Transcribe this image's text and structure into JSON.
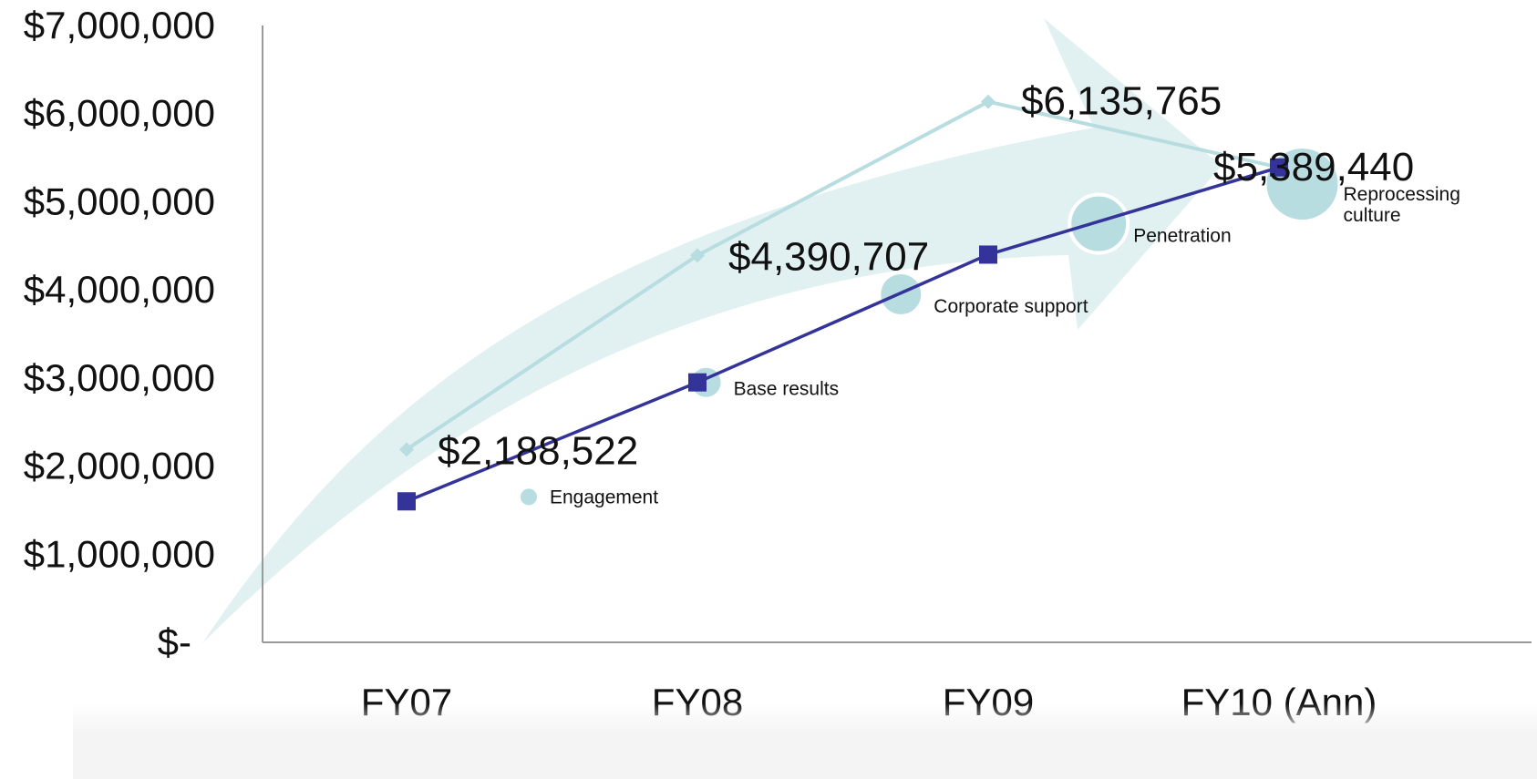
{
  "chart_data": {
    "type": "line",
    "categories": [
      "FY07",
      "FY08",
      "FY09",
      "FY10 (Ann)"
    ],
    "ylim": [
      0,
      7000000
    ],
    "y_ticks": [
      {
        "value": 0,
        "label": "$-"
      },
      {
        "value": 1000000,
        "label": "$1,000,000"
      },
      {
        "value": 2000000,
        "label": "$2,000,000"
      },
      {
        "value": 3000000,
        "label": "$3,000,000"
      },
      {
        "value": 4000000,
        "label": "$4,000,000"
      },
      {
        "value": 5000000,
        "label": "$5,000,000"
      },
      {
        "value": 6000000,
        "label": "$6,000,000"
      },
      {
        "value": 7000000,
        "label": "$7,000,000"
      }
    ],
    "series": [
      {
        "values": [
          2188522,
          4390707,
          6135765,
          5389440
        ],
        "data_labels": [
          "$2,188,522",
          "$4,390,707",
          "$6,135,765",
          "$5,389,440"
        ],
        "color": "#b8dde1",
        "marker": "diamond"
      },
      {
        "values": [
          1600000,
          2950000,
          4400000,
          5389440
        ],
        "color": "#333399",
        "marker": "square"
      }
    ],
    "bubbles": [
      {
        "label": "Engagement",
        "x": 0.42,
        "y": 1650000,
        "size": 1
      },
      {
        "label": "Base results",
        "x": 1.03,
        "y": 2950000,
        "size": 2
      },
      {
        "label": "Corporate support",
        "x": 1.7,
        "y": 3950000,
        "size": 3
      },
      {
        "label": "Penetration",
        "x": 2.38,
        "y": 4750000,
        "size": 4
      },
      {
        "label": "Reprocessing culture",
        "x": 3.08,
        "y": 5200000,
        "size": 5
      }
    ],
    "decoration": "curved-arrow",
    "colors": {
      "arrow": "#d7ecee",
      "bubble": "#b8dde1",
      "axis": "#999999"
    },
    "grid": false,
    "legend": "none"
  }
}
